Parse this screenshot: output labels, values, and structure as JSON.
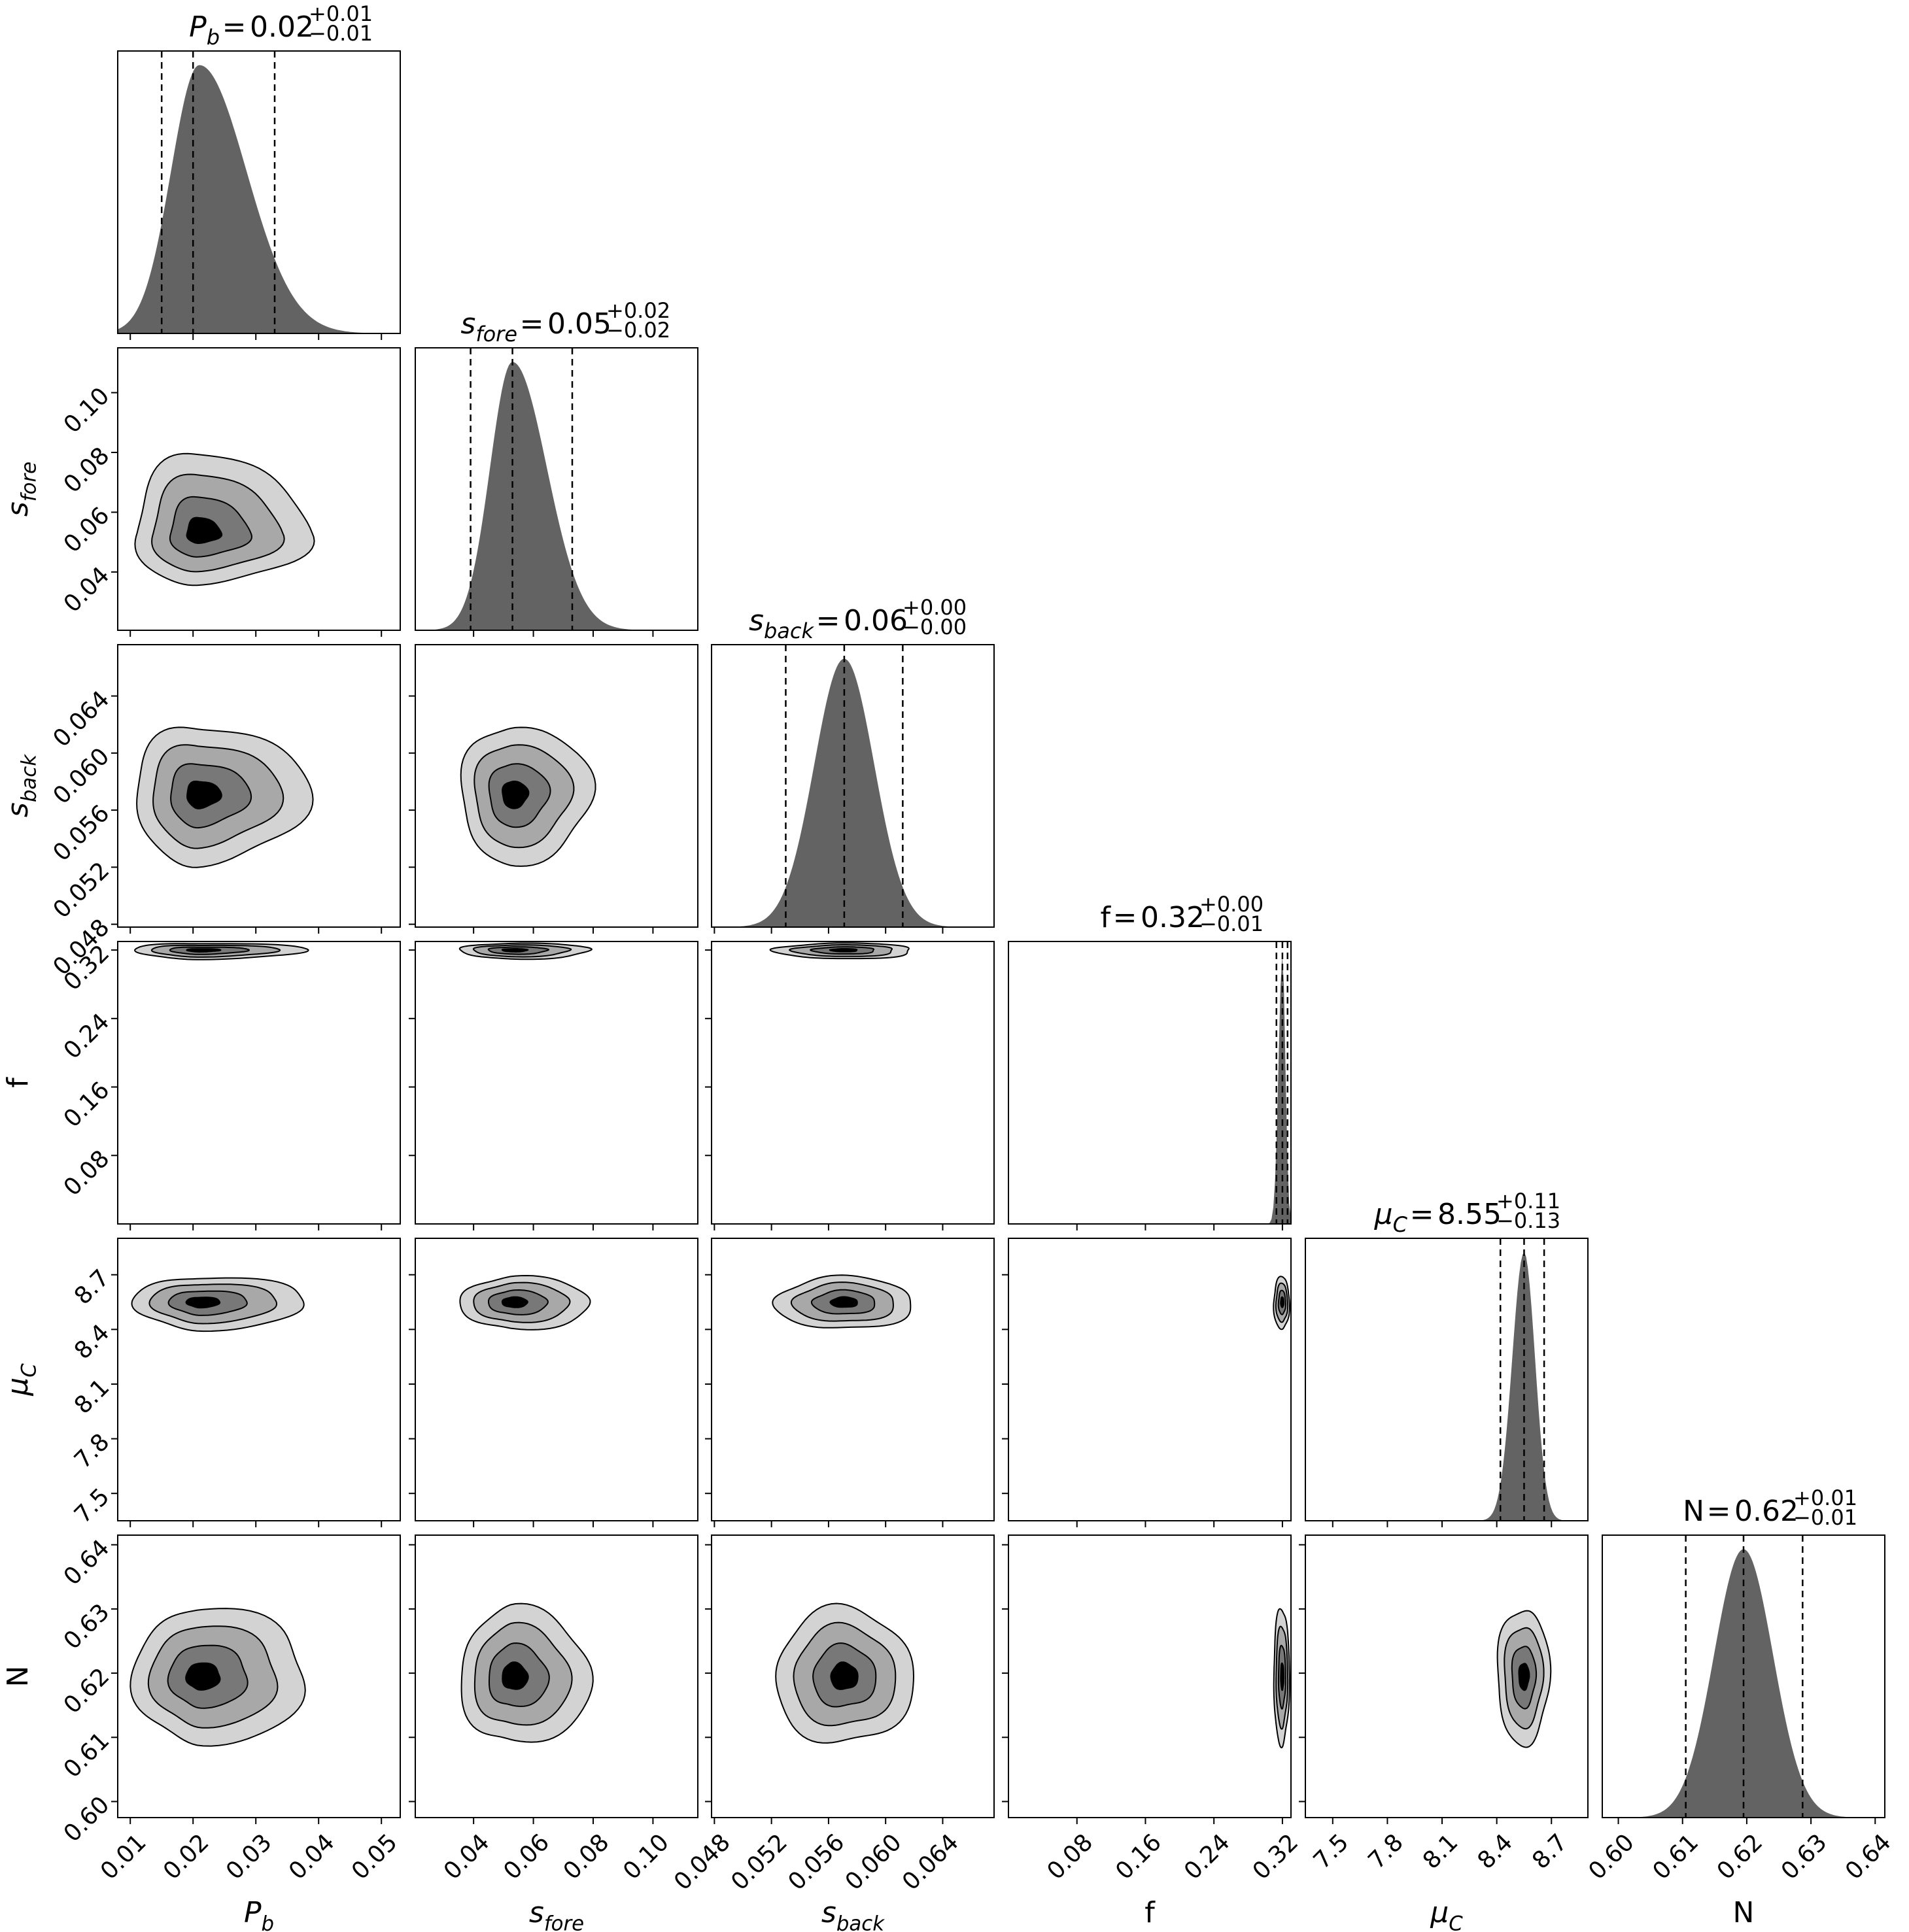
{
  "chart_data": {
    "type": "corner",
    "parameters": [
      {
        "key": "Pb",
        "label_base": "P",
        "label_sub": "b",
        "italic": true,
        "range": [
          0.008,
          0.053
        ],
        "ticks": [
          0.01,
          0.02,
          0.03,
          0.04,
          0.05
        ],
        "tick_labels": [
          "0.01",
          "0.02",
          "0.03",
          "0.04",
          "0.05"
        ],
        "median": 0.02,
        "q_low": 0.015,
        "q_high": 0.033,
        "mode": 0.021,
        "sd_left": 0.0045,
        "sd_right": 0.0075,
        "title_value": "0.02",
        "title_plus": "+0.01",
        "title_minus": "−0.01",
        "equals": "="
      },
      {
        "key": "sfore",
        "label_base": "s",
        "label_sub": "fore",
        "italic": true,
        "range": [
          0.0205,
          0.115
        ],
        "ticks": [
          0.04,
          0.06,
          0.08,
          0.1
        ],
        "tick_labels": [
          "0.04",
          "0.06",
          "0.08",
          "0.10"
        ],
        "median": 0.053,
        "q_low": 0.039,
        "q_high": 0.073,
        "mode": 0.053,
        "sd_left": 0.0075,
        "sd_right": 0.0115,
        "title_value": "0.05",
        "title_plus": "+0.02",
        "title_minus": "−0.02",
        "equals": "="
      },
      {
        "key": "sback",
        "label_base": "s",
        "label_sub": "back",
        "italic": true,
        "range": [
          0.0478,
          0.0676
        ],
        "ticks": [
          0.048,
          0.052,
          0.056,
          0.06,
          0.064
        ],
        "tick_labels": [
          "0.048",
          "0.052",
          "0.056",
          "0.060",
          "0.064"
        ],
        "median": 0.0571,
        "q_low": 0.053,
        "q_high": 0.0612,
        "mode": 0.0571,
        "sd_left": 0.0021,
        "sd_right": 0.0021,
        "title_value": "0.06",
        "title_plus": "+0.00",
        "title_minus": "−0.00",
        "equals": "="
      },
      {
        "key": "f",
        "label_base": "f",
        "label_sub": "",
        "italic": false,
        "range": [
          0.0,
          0.33
        ],
        "ticks": [
          0.08,
          0.16,
          0.24,
          0.32
        ],
        "tick_labels": [
          "0.08",
          "0.16",
          "0.24",
          "0.32"
        ],
        "median": 0.32,
        "q_low": 0.313,
        "q_high": 0.326,
        "mode": 0.32,
        "sd_left": 0.0045,
        "sd_right": 0.0035,
        "title_value": "0.32",
        "title_plus": "+0.00",
        "title_minus": "−0.01",
        "equals": "="
      },
      {
        "key": "muC",
        "label_base": "μ",
        "label_sub": "C",
        "italic": true,
        "range": [
          7.35,
          8.9
        ],
        "ticks": [
          7.5,
          7.8,
          8.1,
          8.4,
          8.7
        ],
        "tick_labels": [
          "7.5",
          "7.8",
          "8.1",
          "8.4",
          "8.7"
        ],
        "median": 8.55,
        "q_low": 8.42,
        "q_high": 8.66,
        "mode": 8.55,
        "sd_left": 0.065,
        "sd_right": 0.06,
        "title_value": "8.55",
        "title_plus": "+0.11",
        "title_minus": "−0.13",
        "equals": "="
      },
      {
        "key": "N",
        "label_base": "N",
        "label_sub": "",
        "italic": false,
        "range": [
          0.5975,
          0.6415
        ],
        "ticks": [
          0.6,
          0.61,
          0.62,
          0.63,
          0.64
        ],
        "tick_labels": [
          "0.60",
          "0.61",
          "0.62",
          "0.63",
          "0.64"
        ],
        "median": 0.6195,
        "q_low": 0.6105,
        "q_high": 0.6287,
        "mode": 0.6195,
        "sd_left": 0.0046,
        "sd_right": 0.0046,
        "title_value": "0.62",
        "title_plus": "+0.01",
        "title_minus": "−0.01",
        "equals": "="
      }
    ],
    "contour_fill_colors": [
      "#d3d3d3",
      "#a8a8a8",
      "#787878",
      "#000000"
    ],
    "hist_color": "#636363"
  }
}
